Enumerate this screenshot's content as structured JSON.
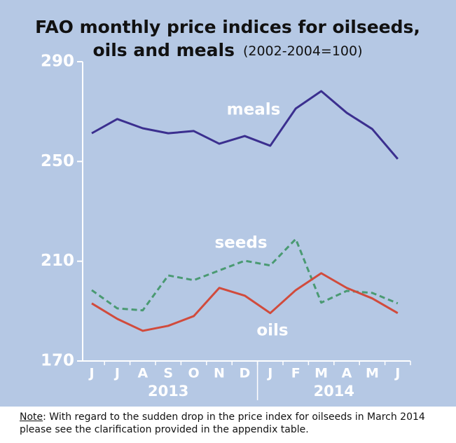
{
  "chart_data": {
    "type": "line",
    "title": [
      "FAO monthly price indices for oilseeds,",
      "oils and meals"
    ],
    "subtitle": "(2002-2004=100)",
    "groups": [
      {
        "label": "2013",
        "categories": [
          "J",
          "J",
          "A",
          "S",
          "O",
          "N",
          "D"
        ]
      },
      {
        "label": "2014",
        "categories": [
          "J",
          "F",
          "M",
          "A",
          "M",
          "J"
        ]
      }
    ],
    "series": [
      {
        "name": "meals",
        "color": "#3b2f8f",
        "dashed": false,
        "values": [
          261.3,
          267.0,
          263.3,
          261.3,
          262.2,
          257.1,
          260.2,
          256.3,
          271.2,
          278.2,
          269.5,
          263.0,
          251.0
        ]
      },
      {
        "name": "seeds",
        "color": "#4a9a72",
        "dashed": true,
        "values": [
          198.4,
          191.1,
          190.3,
          204.3,
          202.4,
          206.3,
          210.2,
          208.3,
          218.9,
          193.4,
          198.1,
          197.3,
          193.1
        ]
      },
      {
        "name": "oils",
        "color": "#d14b3c",
        "dashed": false,
        "values": [
          193.1,
          186.9,
          182.1,
          184.1,
          188.0,
          199.3,
          196.2,
          189.2,
          198.4,
          205.2,
          199.3,
          195.1,
          189.2
        ]
      }
    ],
    "ylim": [
      170,
      290
    ],
    "yticks": [
      170,
      210,
      250,
      290
    ],
    "grid": false
  },
  "note": {
    "label": "Note",
    "text": ": With regard to the sudden drop in the price index for oilseeds in March 2014 please see the clarification provided in the appendix table."
  }
}
